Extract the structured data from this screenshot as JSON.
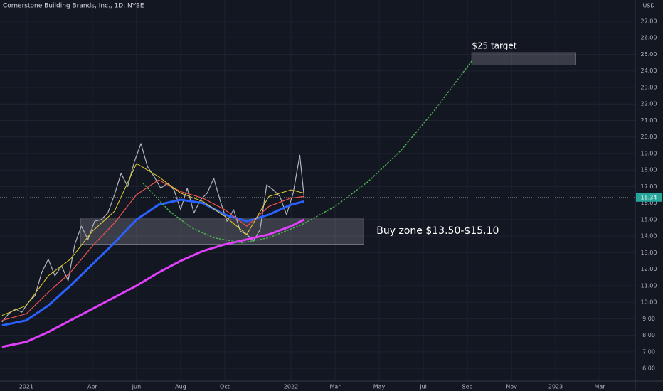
{
  "chart_data": {
    "type": "line",
    "title": "Cornerstone Building Brands, Inc., 1D, NYSE",
    "currency": "USD",
    "grid": true,
    "xlim": [
      -1.19,
      27.61
    ],
    "ylim": [
      5.23,
      28.29
    ],
    "xticks": [
      {
        "value": 0,
        "label": "2021"
      },
      {
        "value": 3,
        "label": "Apr"
      },
      {
        "value": 5,
        "label": "Jun"
      },
      {
        "value": 7,
        "label": "Aug"
      },
      {
        "value": 9,
        "label": "Oct"
      },
      {
        "value": 12,
        "label": "2022"
      },
      {
        "value": 14,
        "label": "Mar"
      },
      {
        "value": 16,
        "label": "May"
      },
      {
        "value": 18,
        "label": "Jul"
      },
      {
        "value": 20,
        "label": "Sep"
      },
      {
        "value": 22,
        "label": "Nov"
      },
      {
        "value": 24,
        "label": "2023"
      },
      {
        "value": 26,
        "label": "Mar"
      }
    ],
    "yticks": [
      {
        "value": 6,
        "label": "6.00"
      },
      {
        "value": 7,
        "label": "7.00"
      },
      {
        "value": 8,
        "label": "8.00"
      },
      {
        "value": 9,
        "label": "9.00"
      },
      {
        "value": 10,
        "label": "10.00"
      },
      {
        "value": 11,
        "label": "11.00"
      },
      {
        "value": 12,
        "label": "12.00"
      },
      {
        "value": 13,
        "label": "13.00"
      },
      {
        "value": 14,
        "label": "14.00"
      },
      {
        "value": 15,
        "label": "15.00"
      },
      {
        "value": 16,
        "label": "16.00"
      },
      {
        "value": 17,
        "label": "17.00"
      },
      {
        "value": 18,
        "label": "18.00"
      },
      {
        "value": 19,
        "label": "19.00"
      },
      {
        "value": 20,
        "label": "20.00"
      },
      {
        "value": 21,
        "label": "21.00"
      },
      {
        "value": 22,
        "label": "22.00"
      },
      {
        "value": 23,
        "label": "23.00"
      },
      {
        "value": 24,
        "label": "24.00"
      },
      {
        "value": 25,
        "label": "25.00"
      },
      {
        "value": 26,
        "label": "26.00"
      },
      {
        "value": 27,
        "label": "27.00"
      }
    ],
    "last_price": {
      "value": 16.34,
      "label": "16.34",
      "color": "#26a69a"
    },
    "series": [
      {
        "color": "#b2b5be",
        "width": 1.2,
        "x": [
          -1.1,
          -0.8,
          -0.5,
          -0.2,
          0.1,
          0.4,
          0.7,
          1.0,
          1.3,
          1.6,
          1.9,
          2.2,
          2.5,
          2.8,
          3.1,
          3.4,
          3.7,
          4.0,
          4.3,
          4.6,
          4.9,
          5.2,
          5.5,
          5.8,
          6.1,
          6.4,
          6.7,
          7.0,
          7.3,
          7.6,
          7.9,
          8.2,
          8.5,
          8.8,
          9.1,
          9.4,
          9.7,
          10.0,
          10.3,
          10.6,
          10.9,
          11.2,
          11.5,
          11.8,
          12.1,
          12.4,
          12.6
        ],
        "values": [
          8.8,
          9.3,
          9.6,
          9.4,
          10.0,
          10.4,
          11.8,
          12.6,
          11.6,
          12.2,
          11.3,
          13.5,
          14.6,
          13.8,
          14.9,
          15.0,
          15.4,
          16.5,
          17.8,
          17.0,
          18.5,
          19.6,
          18.2,
          17.6,
          16.9,
          17.2,
          16.8,
          15.6,
          16.9,
          15.4,
          16.2,
          16.6,
          17.5,
          16.1,
          14.9,
          15.6,
          14.3,
          14.1,
          13.7,
          14.4,
          17.1,
          16.8,
          16.4,
          15.3,
          16.6,
          18.9,
          16.34
        ]
      },
      {
        "color": "#e040fb",
        "width": 3,
        "x": [
          -1.1,
          0,
          1,
          2,
          3,
          4,
          5,
          6,
          7,
          8,
          9,
          10,
          11,
          12,
          12.6
        ],
        "values": [
          7.3,
          7.6,
          8.2,
          8.9,
          9.6,
          10.3,
          11.0,
          11.8,
          12.5,
          13.1,
          13.5,
          13.8,
          14.1,
          14.6,
          15.0
        ]
      },
      {
        "color": "#2962ff",
        "width": 3,
        "x": [
          -1.1,
          0,
          1,
          2,
          3,
          4,
          5,
          6,
          7,
          8,
          9,
          10,
          11,
          12,
          12.6
        ],
        "values": [
          8.6,
          8.9,
          9.8,
          11.0,
          12.3,
          13.6,
          15.0,
          15.9,
          16.2,
          16.0,
          15.3,
          14.9,
          15.3,
          15.9,
          16.1
        ]
      },
      {
        "color": "#ef5350",
        "width": 1.2,
        "x": [
          -1.1,
          0,
          1,
          2,
          3,
          4,
          5,
          6,
          7,
          8,
          9,
          10,
          11,
          12,
          12.6
        ],
        "values": [
          8.9,
          9.3,
          10.6,
          11.8,
          13.4,
          14.8,
          16.5,
          17.4,
          16.7,
          16.3,
          15.6,
          14.6,
          15.8,
          16.3,
          16.4
        ]
      },
      {
        "color": "#e6d32a",
        "width": 1,
        "x": [
          -1.1,
          0,
          1,
          2,
          3,
          4,
          5,
          6,
          7,
          8,
          9,
          10,
          11,
          12,
          12.6
        ],
        "values": [
          9.2,
          9.8,
          11.6,
          12.6,
          14.3,
          15.5,
          18.4,
          17.6,
          16.6,
          16.1,
          15.2,
          14.1,
          16.4,
          16.8,
          16.6
        ]
      },
      {
        "color": "#4caf50",
        "width": 1.5,
        "dotted": true,
        "x": [
          5.3,
          6.5,
          7.5,
          8.5,
          9.8,
          11,
          12.5,
          14,
          15.5,
          17,
          18.5,
          20.2
        ],
        "values": [
          17.2,
          15.5,
          14.5,
          13.9,
          13.6,
          13.9,
          14.7,
          15.8,
          17.3,
          19.2,
          21.6,
          24.6
        ]
      }
    ],
    "zones": [
      {
        "label": "$25 target",
        "x": [
          20.2,
          24.9
        ],
        "y": [
          24.35,
          25.1
        ]
      },
      {
        "label": "Buy zone $13.50-$15.10",
        "x": [
          2.45,
          15.3
        ],
        "y": [
          13.5,
          15.1
        ]
      }
    ]
  }
}
